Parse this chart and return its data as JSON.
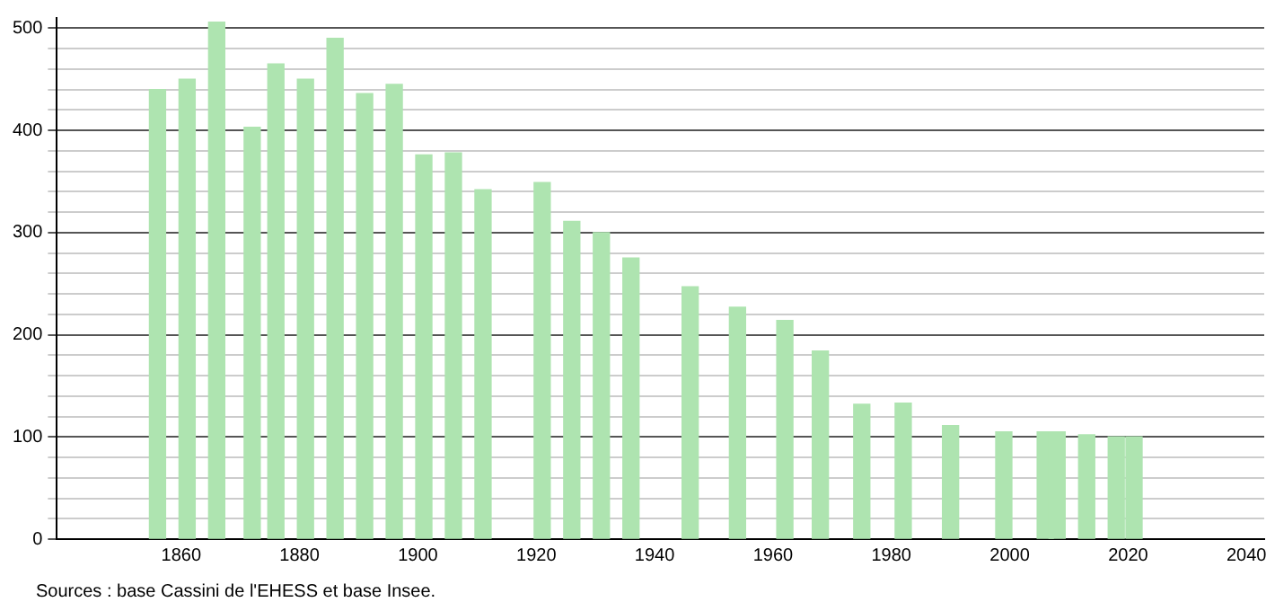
{
  "chart_data": {
    "type": "bar",
    "x": [
      1856,
      1861,
      1866,
      1872,
      1876,
      1881,
      1886,
      1891,
      1896,
      1901,
      1906,
      1911,
      1921,
      1926,
      1931,
      1936,
      1946,
      1954,
      1962,
      1968,
      1975,
      1982,
      1990,
      1999,
      2006,
      2008,
      2013,
      2018,
      2021
    ],
    "values": [
      440,
      450,
      506,
      403,
      465,
      450,
      490,
      436,
      445,
      376,
      378,
      342,
      349,
      311,
      300,
      275,
      247,
      227,
      214,
      184,
      132,
      133,
      111,
      105,
      105,
      105,
      102,
      100,
      100
    ],
    "color": "#aee4b0",
    "xlim": [
      1839,
      2043
    ],
    "xticks": [
      1860,
      1880,
      1900,
      1920,
      1940,
      1960,
      1980,
      2000,
      2020,
      2040
    ],
    "ylim": [
      0,
      510
    ],
    "yticks": [
      0,
      {
        "value": 20,
        "label": null
      },
      {
        "value": 40,
        "label": null
      },
      {
        "value": 60,
        "label": null
      },
      {
        "value": 80,
        "label": null
      },
      100,
      {
        "value": 120,
        "label": null
      },
      {
        "value": 140,
        "label": null
      },
      {
        "value": 160,
        "label": null
      },
      {
        "value": 180,
        "label": null
      },
      200,
      {
        "value": 220,
        "label": null
      },
      {
        "value": 240,
        "label": null
      },
      {
        "value": 260,
        "label": null
      },
      {
        "value": 280,
        "label": null
      },
      300,
      {
        "value": 320,
        "label": null
      },
      {
        "value": 340,
        "label": null
      },
      {
        "value": 360,
        "label": null
      },
      {
        "value": 380,
        "label": null
      },
      400,
      {
        "value": 420,
        "label": null
      },
      {
        "value": 440,
        "label": null
      },
      {
        "value": 460,
        "label": null
      },
      {
        "value": 480,
        "label": null
      },
      500
    ],
    "grid": "y",
    "annotations": [
      "Sources : base Cassini de l'EHESS et base Insee."
    ]
  }
}
